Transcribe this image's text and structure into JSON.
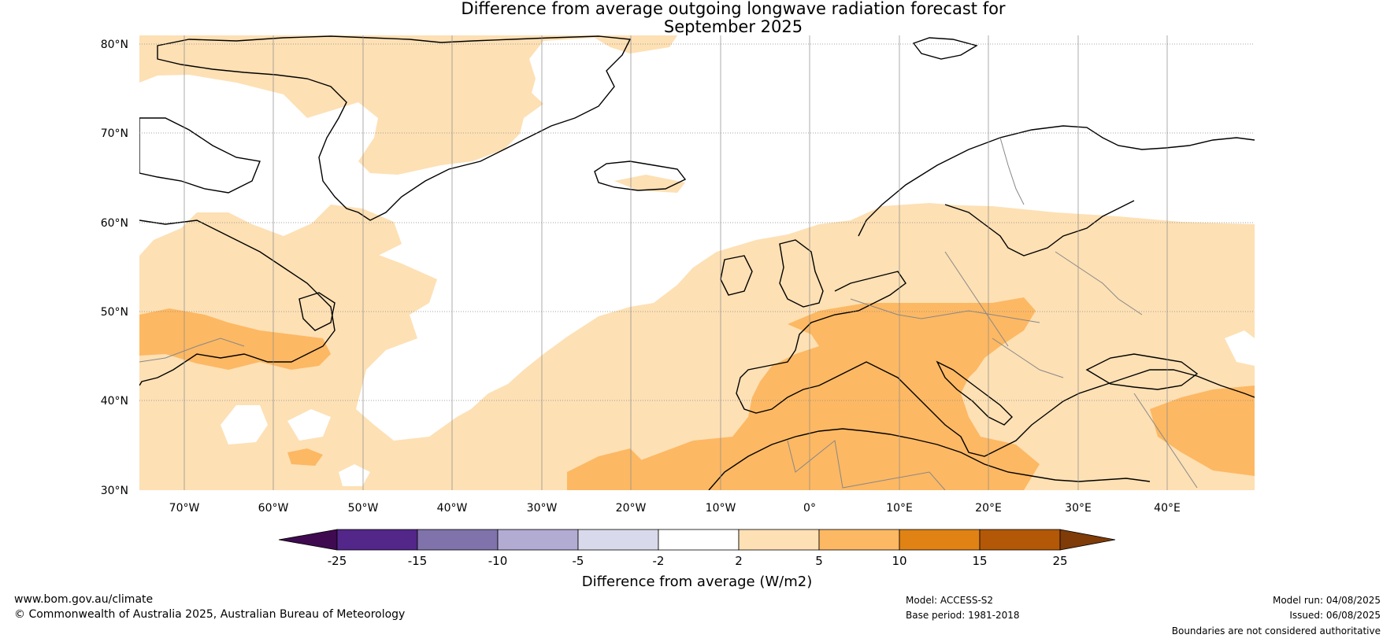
{
  "title_line1": "Difference from average outgoing longwave radiation forecast for",
  "title_line2": "September 2025",
  "lat_labels": [
    "80°N",
    "70°N",
    "60°N",
    "50°N",
    "40°N",
    "30°N"
  ],
  "lon_labels": [
    "70°W",
    "60°W",
    "50°W",
    "40°W",
    "30°W",
    "20°W",
    "10°W",
    "0°",
    "10°E",
    "20°E",
    "30°E",
    "40°E"
  ],
  "colorbar": {
    "title": "Difference from average (W/m2)",
    "tick_labels": [
      "-25",
      "-15",
      "-10",
      "-5",
      "-2",
      "2",
      "5",
      "10",
      "15",
      "25"
    ],
    "colors": [
      "#3f0a4f",
      "#53268a",
      "#8073ac",
      "#b2abd2",
      "#d8daeb",
      "#ffffff",
      "#fde0b4",
      "#fdb863",
      "#e08214",
      "#b35806",
      "#7f3b08"
    ]
  },
  "map": {
    "colors": {
      "ocean_neutral": "#ffffff",
      "light_orange": "#fde0b4",
      "medium_orange": "#fdb863",
      "coast": "#000000",
      "border": "#888888"
    }
  },
  "footer": {
    "website": "www.bom.gov.au/climate",
    "copyright": "© Commonwealth of Australia 2025, Australian Bureau of Meteorology",
    "model": "Model: ACCESS-S2",
    "base_period": "Base period: 1981-2018",
    "model_run": "Model run: 04/08/2025",
    "issued": "Issued: 06/08/2025",
    "disclaimer": "Boundaries are not considered authoritative"
  }
}
